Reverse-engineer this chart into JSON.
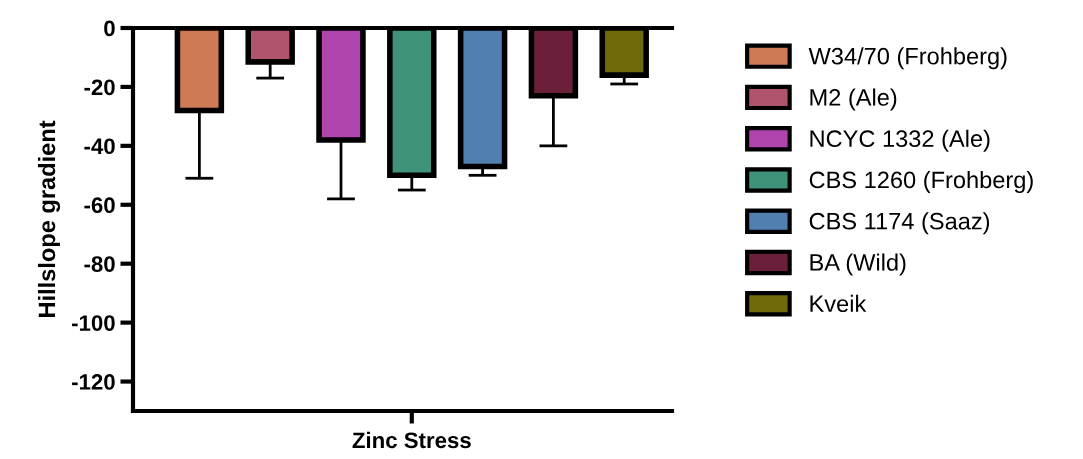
{
  "chart_data": {
    "type": "bar",
    "ylabel": "Hillslope gradient",
    "categories": [
      "Zinc Stress"
    ],
    "ylim": [
      -130,
      0
    ],
    "yticks": [
      0,
      -20,
      -40,
      -60,
      -80,
      -100,
      -120
    ],
    "grid": false,
    "legend": "right",
    "series": [
      {
        "name": "W34/70 (Frohberg)",
        "color": "#cd7a55",
        "values": [
          -28
        ],
        "errors": [
          [
            -51,
            -28
          ]
        ]
      },
      {
        "name": "M2 (Ale)",
        "color": "#b0546e",
        "values": [
          -11.5
        ],
        "errors": [
          [
            -17,
            -11.5
          ]
        ]
      },
      {
        "name": "NCYC 1332 (Ale)",
        "color": "#b045b0",
        "values": [
          -38
        ],
        "errors": [
          [
            -58,
            -38
          ]
        ]
      },
      {
        "name": "CBS 1260 (Frohberg)",
        "color": "#3f937a",
        "values": [
          -50
        ],
        "errors": [
          [
            -55,
            -50
          ]
        ]
      },
      {
        "name": "CBS 1174 (Saaz)",
        "color": "#517fb0",
        "values": [
          -47
        ],
        "errors": [
          [
            -50,
            -47
          ]
        ]
      },
      {
        "name": "BA (Wild)",
        "color": "#6b1f3b",
        "values": [
          -23
        ],
        "errors": [
          [
            -40,
            -23
          ]
        ]
      },
      {
        "name": "Kveik",
        "color": "#716a0b",
        "values": [
          -16
        ],
        "errors": [
          [
            -19,
            -16
          ]
        ]
      }
    ]
  }
}
